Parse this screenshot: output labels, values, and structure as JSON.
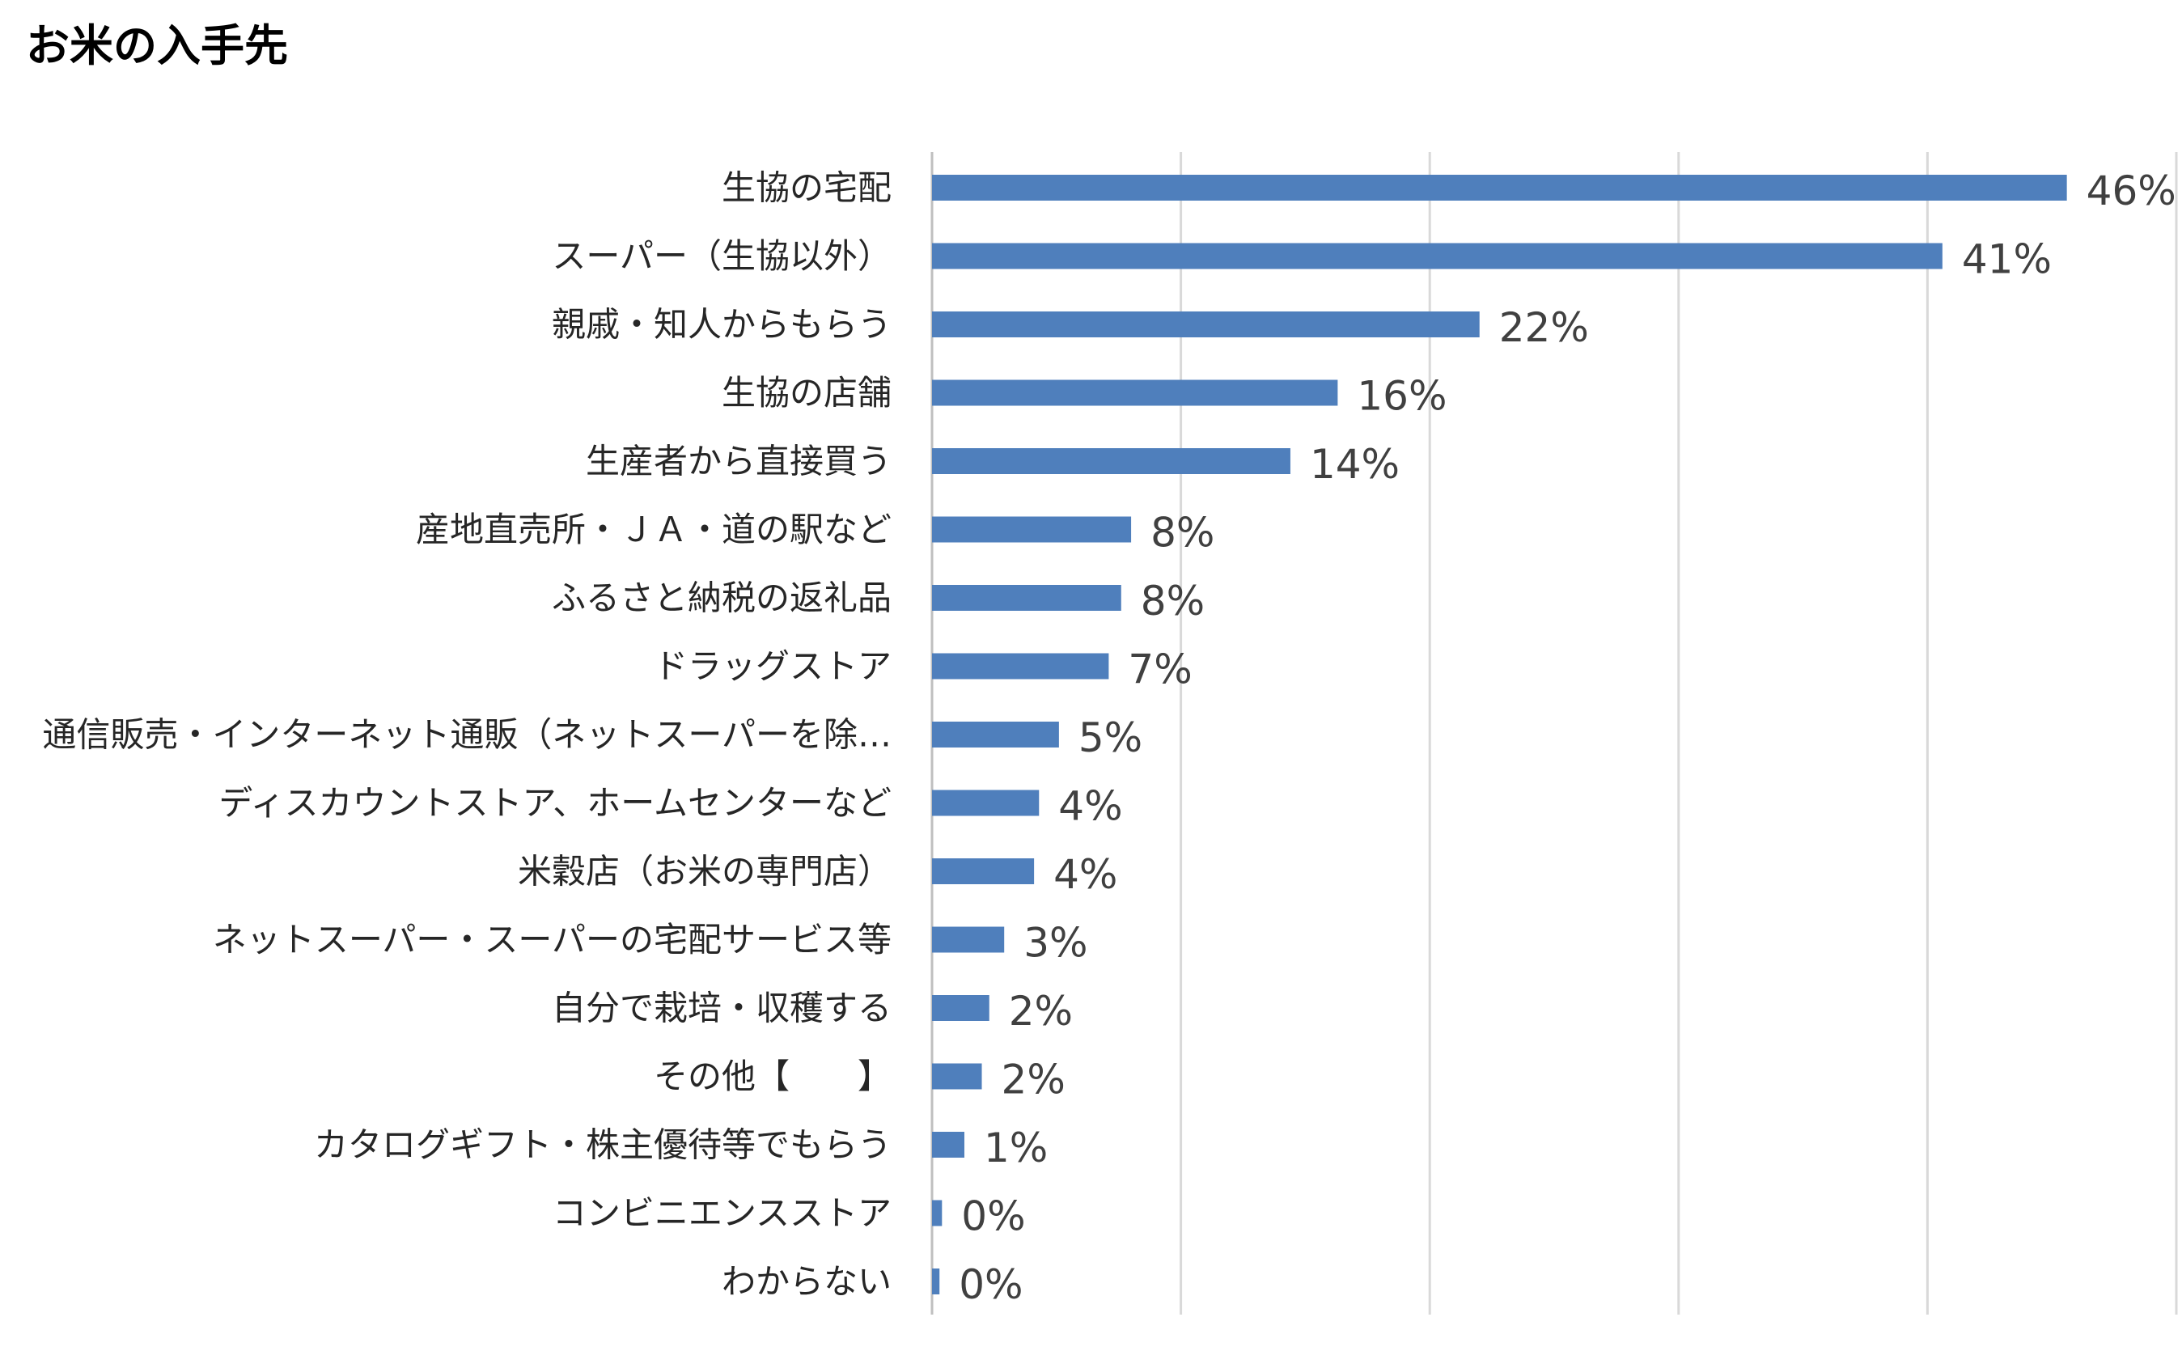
{
  "title": "お米の入手先",
  "colors": {
    "bar": "#4F7FBC",
    "grid": "#D9D9D9",
    "axis": "#BFBFBF"
  },
  "chart_data": {
    "type": "bar",
    "orientation": "horizontal",
    "title": "お米の入手先",
    "categories": [
      "生協の宅配",
      "スーパー（生協以外）",
      "親戚・知人からもらう",
      "生協の店舗",
      "生産者から直接買う",
      "産地直売所・ＪＡ・道の駅など",
      "ふるさと納税の返礼品",
      "ドラッグストア",
      "通信販売・インターネット通販（ネットスーパーを除…",
      "ディスカウントストア、ホームセンターなど",
      "米穀店（お米の専門店）",
      "ネットスーパー・スーパーの宅配サービス等",
      "自分で栽培・収穫する",
      "その他【　　】",
      "カタログギフト・株主優待等でもらう",
      "コンビニエンスストア",
      "わからない"
    ],
    "values": [
      45.6,
      40.6,
      22.0,
      16.3,
      14.4,
      8.0,
      7.6,
      7.1,
      5.1,
      4.3,
      4.1,
      2.9,
      2.3,
      2.0,
      1.3,
      0.4,
      0.3
    ],
    "value_labels": [
      "46%",
      "41%",
      "22%",
      "16%",
      "14%",
      "8%",
      "8%",
      "7%",
      "5%",
      "4%",
      "4%",
      "3%",
      "2%",
      "2%",
      "1%",
      "0%",
      "0%"
    ],
    "xlim": [
      0,
      50
    ],
    "x_gridlines": [
      0,
      10,
      20,
      30,
      40,
      50
    ],
    "grid": true,
    "legend": "none"
  }
}
